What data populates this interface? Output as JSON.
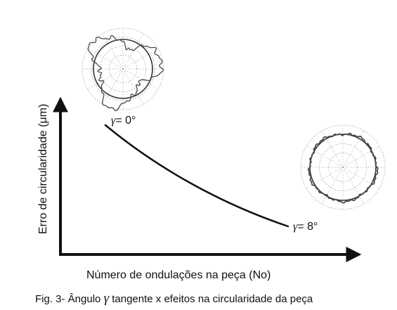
{
  "y_axis_label": "Erro de circularidade (μm)",
  "x_axis_label": "Número de ondulações na peça (No)",
  "curve": {
    "start_label": {
      "symbol": "γ",
      "text": "= 0°"
    },
    "end_label": {
      "symbol": "γ",
      "text": "= 8°"
    }
  },
  "caption": {
    "prefix": "Fig. 3- Ângulo ",
    "symbol": "γ",
    "suffix": " tangente x efeitos na circularidade da peça"
  },
  "colors": {
    "ink": "#111111",
    "grid": "#9a9a9a",
    "profile": "#4a4a4a"
  }
}
